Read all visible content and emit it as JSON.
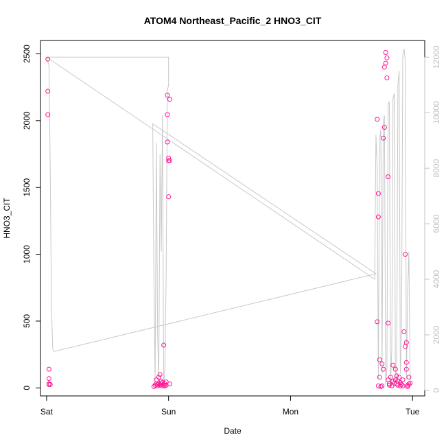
{
  "chart_data": {
    "type": "scatter",
    "title": "ATOM4 Northeast_Pacific_2 HNO3_CIT",
    "xlabel": "Date",
    "ylabel": "HNO3_CIT",
    "x_ticks": [
      "Sat",
      "Sun",
      "Mon",
      "Tue"
    ],
    "x_range_days": [
      -0.05,
      3.1
    ],
    "ylim": [
      -60,
      2600
    ],
    "y_ticks": [
      0,
      500,
      1000,
      1500,
      2000,
      2500
    ],
    "ylim_right": [
      -200,
      12600
    ],
    "y_ticks_right": [
      0,
      2000,
      4000,
      6000,
      8000,
      10000,
      12000
    ],
    "grid": false,
    "colors": {
      "points": "#ff1493",
      "line": "#c8c8c8",
      "axis": "#000000",
      "right_axis": "#c0c0c0"
    },
    "series": [
      {
        "type": "scatter",
        "x": [
          0.01,
          0.01,
          0.01,
          0.02,
          0.02,
          0.02,
          0.02,
          0.03,
          0.88,
          0.89,
          0.9,
          0.9,
          0.91,
          0.91,
          0.92,
          0.92,
          0.93,
          0.93,
          0.94,
          0.94,
          0.95,
          0.95,
          0.96,
          0.96,
          0.97,
          0.97,
          0.98,
          0.98,
          0.99,
          0.99,
          0.99,
          1.0,
          1.0,
          1.0,
          1.01,
          1.01,
          1.01,
          2.71,
          2.71,
          2.72,
          2.72,
          2.72,
          2.73,
          2.73,
          2.74,
          2.75,
          2.75,
          2.76,
          2.76,
          2.77,
          2.77,
          2.78,
          2.78,
          2.79,
          2.79,
          2.8,
          2.8,
          2.8,
          2.81,
          2.81,
          2.82,
          2.83,
          2.84,
          2.84,
          2.85,
          2.86,
          2.86,
          2.87,
          2.87,
          2.88,
          2.88,
          2.89,
          2.9,
          2.9,
          2.91,
          2.92,
          2.92,
          2.93,
          2.94,
          2.94,
          2.95,
          2.95,
          2.95,
          2.96,
          2.96,
          2.97,
          2.97,
          2.98
        ],
        "y": [
          2460,
          2220,
          2045,
          140,
          70,
          30,
          25,
          25,
          10,
          20,
          30,
          60,
          15,
          25,
          80,
          35,
          100,
          20,
          50,
          30,
          15,
          40,
          320,
          20,
          15,
          30,
          45,
          20,
          1840,
          2190,
          2045,
          1430,
          1720,
          1700,
          1700,
          2160,
          30,
          2010,
          495,
          1455,
          1280,
          15,
          210,
          80,
          10,
          15,
          180,
          140,
          1870,
          1950,
          2400,
          2430,
          2510,
          2470,
          2320,
          1580,
          485,
          60,
          30,
          20,
          80,
          15,
          50,
          170,
          35,
          140,
          60,
          90,
          30,
          50,
          20,
          80,
          15,
          40,
          25,
          60,
          15,
          420,
          1000,
          310,
          340,
          140,
          190,
          10,
          20,
          80,
          30,
          35
        ]
      },
      {
        "type": "line",
        "axis": "right",
        "x": [
          0.0,
          0.02,
          0.03,
          0.04,
          0.05,
          0.06,
          2.7,
          0.87,
          0.88,
          0.89,
          0.9,
          0.91,
          0.92,
          0.93,
          0.94,
          0.95,
          0.96,
          0.97,
          0.98,
          0.99,
          1.0,
          1.0,
          0.0,
          2.69,
          2.7,
          2.71,
          2.72,
          2.73,
          2.74,
          2.75,
          2.76,
          2.77,
          2.78,
          2.79,
          2.8,
          2.81,
          2.82,
          2.83,
          2.84,
          2.85,
          2.86,
          2.87,
          2.88,
          2.89,
          2.9,
          2.91,
          2.92,
          2.93,
          2.94,
          2.95,
          2.96,
          2.97,
          2.98
        ],
        "y": [
          12000,
          11700,
          8000,
          3000,
          1500,
          1400,
          4200,
          9600,
          4000,
          300,
          8900,
          2000,
          400,
          8500,
          5000,
          9900,
          100,
          700,
          4000,
          10800,
          11000,
          12000,
          12000,
          4000,
          9200,
          8000,
          400,
          9000,
          9400,
          600,
          9700,
          9900,
          200,
          800,
          10300,
          10400,
          200,
          1500,
          10500,
          10700,
          300,
          400,
          11000,
          11500,
          600,
          2100,
          12100,
          12300,
          11900,
          400,
          3500,
          5000,
          200
        ]
      }
    ]
  }
}
